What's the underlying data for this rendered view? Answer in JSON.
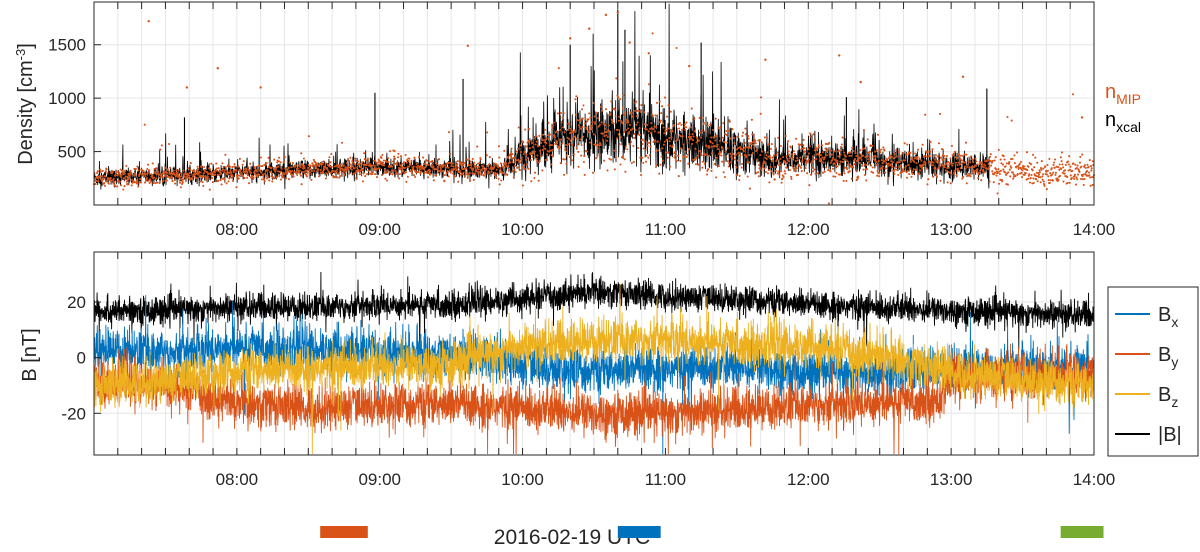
{
  "chart_data": [
    {
      "type": "scatter",
      "ylabel": "Density [cm",
      "ylabel_exp": "-3",
      "ylabel_close": "]",
      "xlim": [
        "07:00",
        "14:00"
      ],
      "ylim": [
        0,
        1900
      ],
      "yticks": [
        500,
        1000,
        1500
      ],
      "xticks": [
        "08:00",
        "09:00",
        "10:00",
        "11:00",
        "12:00",
        "13:00",
        "14:00"
      ],
      "grid": true,
      "legend_placement": "right",
      "series": [
        {
          "name": "n",
          "sub": "MIP",
          "color": "#D95319",
          "style": "dots",
          "profile": [
            [
              "07:00",
              250
            ],
            [
              "07:30",
              270
            ],
            [
              "08:00",
              300
            ],
            [
              "08:30",
              330
            ],
            [
              "09:00",
              360
            ],
            [
              "09:30",
              340
            ],
            [
              "09:50",
              320
            ],
            [
              "10:00",
              450
            ],
            [
              "10:15",
              600
            ],
            [
              "10:40",
              690
            ],
            [
              "11:00",
              620
            ],
            [
              "11:30",
              520
            ],
            [
              "11:45",
              400
            ],
            [
              "12:00",
              450
            ],
            [
              "12:30",
              400
            ],
            [
              "13:00",
              360
            ],
            [
              "13:15",
              350
            ],
            [
              "13:30",
              320
            ],
            [
              "14:00",
              300
            ]
          ],
          "spread": [
            [
              "07:00",
              90
            ],
            [
              "09:50",
              100
            ],
            [
              "10:00",
              200
            ],
            [
              "10:40",
              350
            ],
            [
              "11:30",
              250
            ],
            [
              "12:00",
              180
            ],
            [
              "13:15",
              140
            ],
            [
              "14:00",
              140
            ]
          ],
          "outliers": [
            [
              "07:23",
              1720
            ],
            [
              "07:39",
              1100
            ],
            [
              "07:52",
              1280
            ],
            [
              "08:10",
              1100
            ],
            [
              "09:37",
              1490
            ],
            [
              "10:20",
              1560
            ],
            [
              "10:28",
              1650
            ],
            [
              "10:35",
              1780
            ],
            [
              "10:40",
              1800
            ],
            [
              "10:45",
              1520
            ],
            [
              "10:53",
              1420
            ],
            [
              "11:10",
              1300
            ],
            [
              "11:42",
              1360
            ],
            [
              "12:13",
              1400
            ],
            [
              "12:22",
              1150
            ],
            [
              "13:05",
              1200
            ],
            [
              "13:55",
              820
            ]
          ]
        },
        {
          "name": "n",
          "sub": "xcal",
          "color": "#000000",
          "style": "line",
          "end": "13:16",
          "spikes": [
            [
              "07:38",
              820
            ],
            [
              "08:58",
              1050
            ],
            [
              "09:35",
              1180
            ],
            [
              "10:20",
              1500
            ],
            [
              "10:40",
              1830
            ],
            [
              "10:43",
              1640
            ],
            [
              "11:15",
              1520
            ],
            [
              "12:16",
              1010
            ],
            [
              "13:15",
              1090
            ]
          ]
        }
      ]
    },
    {
      "type": "line",
      "ylabel": "B [nT]",
      "xlabel": "2016-02-19 UTC",
      "xlim": [
        "07:00",
        "14:00"
      ],
      "ylim": [
        -35,
        38
      ],
      "yticks": [
        -20,
        0,
        20
      ],
      "xticks": [
        "08:00",
        "09:00",
        "10:00",
        "11:00",
        "12:00",
        "13:00",
        "14:00"
      ],
      "grid": true,
      "legend_placement": "right",
      "series": [
        {
          "name": "B",
          "sub": "x",
          "color": "#0072BD",
          "profile": [
            [
              "07:00",
              3
            ],
            [
              "07:30",
              2
            ],
            [
              "08:00",
              4
            ],
            [
              "08:30",
              3
            ],
            [
              "09:00",
              2
            ],
            [
              "09:30",
              1
            ],
            [
              "09:50",
              0
            ],
            [
              "10:00",
              -3
            ],
            [
              "10:30",
              -5
            ],
            [
              "11:00",
              -4
            ],
            [
              "11:30",
              -3
            ],
            [
              "12:00",
              -5
            ],
            [
              "12:30",
              -6
            ],
            [
              "13:00",
              -4
            ],
            [
              "13:30",
              -3
            ],
            [
              "14:00",
              -3
            ]
          ],
          "amp": 4
        },
        {
          "name": "B",
          "sub": "y",
          "color": "#D95319",
          "profile": [
            [
              "07:00",
              -8
            ],
            [
              "07:30",
              -10
            ],
            [
              "08:00",
              -16
            ],
            [
              "08:30",
              -18
            ],
            [
              "09:00",
              -17
            ],
            [
              "09:30",
              -17
            ],
            [
              "10:00",
              -18
            ],
            [
              "10:30",
              -20
            ],
            [
              "11:00",
              -20
            ],
            [
              "11:30",
              -19
            ],
            [
              "12:00",
              -17
            ],
            [
              "12:30",
              -16
            ],
            [
              "12:55",
              -15
            ],
            [
              "13:00",
              -8
            ],
            [
              "13:30",
              -6
            ],
            [
              "14:00",
              -6
            ]
          ],
          "amp": 4
        },
        {
          "name": "B",
          "sub": "z",
          "color": "#EDB120",
          "profile": [
            [
              "07:00",
              -10
            ],
            [
              "07:30",
              -8
            ],
            [
              "08:00",
              -5
            ],
            [
              "08:30",
              -4
            ],
            [
              "09:00",
              -3
            ],
            [
              "09:30",
              -2
            ],
            [
              "10:00",
              4
            ],
            [
              "10:30",
              6
            ],
            [
              "11:00",
              7
            ],
            [
              "11:30",
              5
            ],
            [
              "12:00",
              4
            ],
            [
              "12:30",
              1
            ],
            [
              "13:00",
              -5
            ],
            [
              "13:30",
              -8
            ],
            [
              "14:00",
              -10
            ]
          ],
          "amp": 4
        },
        {
          "name": "|B|",
          "sub": "",
          "color": "#000000",
          "profile": [
            [
              "07:00",
              17
            ],
            [
              "07:30",
              17
            ],
            [
              "08:00",
              18
            ],
            [
              "08:30",
              18
            ],
            [
              "09:00",
              19
            ],
            [
              "09:30",
              19
            ],
            [
              "10:00",
              21
            ],
            [
              "10:30",
              24
            ],
            [
              "11:00",
              22
            ],
            [
              "11:30",
              21
            ],
            [
              "12:00",
              19
            ],
            [
              "12:30",
              18
            ],
            [
              "13:00",
              17
            ],
            [
              "13:30",
              16
            ],
            [
              "14:00",
              15
            ]
          ],
          "amp": 2.5
        }
      ]
    }
  ],
  "bars": [
    {
      "color": "#D95319",
      "x0": "08:35",
      "x1": "08:55"
    },
    {
      "color": "#0072BD",
      "x0": "10:40",
      "x1": "10:58"
    },
    {
      "color": "#77AC30",
      "x0": "13:46",
      "x1": "14:04"
    }
  ]
}
